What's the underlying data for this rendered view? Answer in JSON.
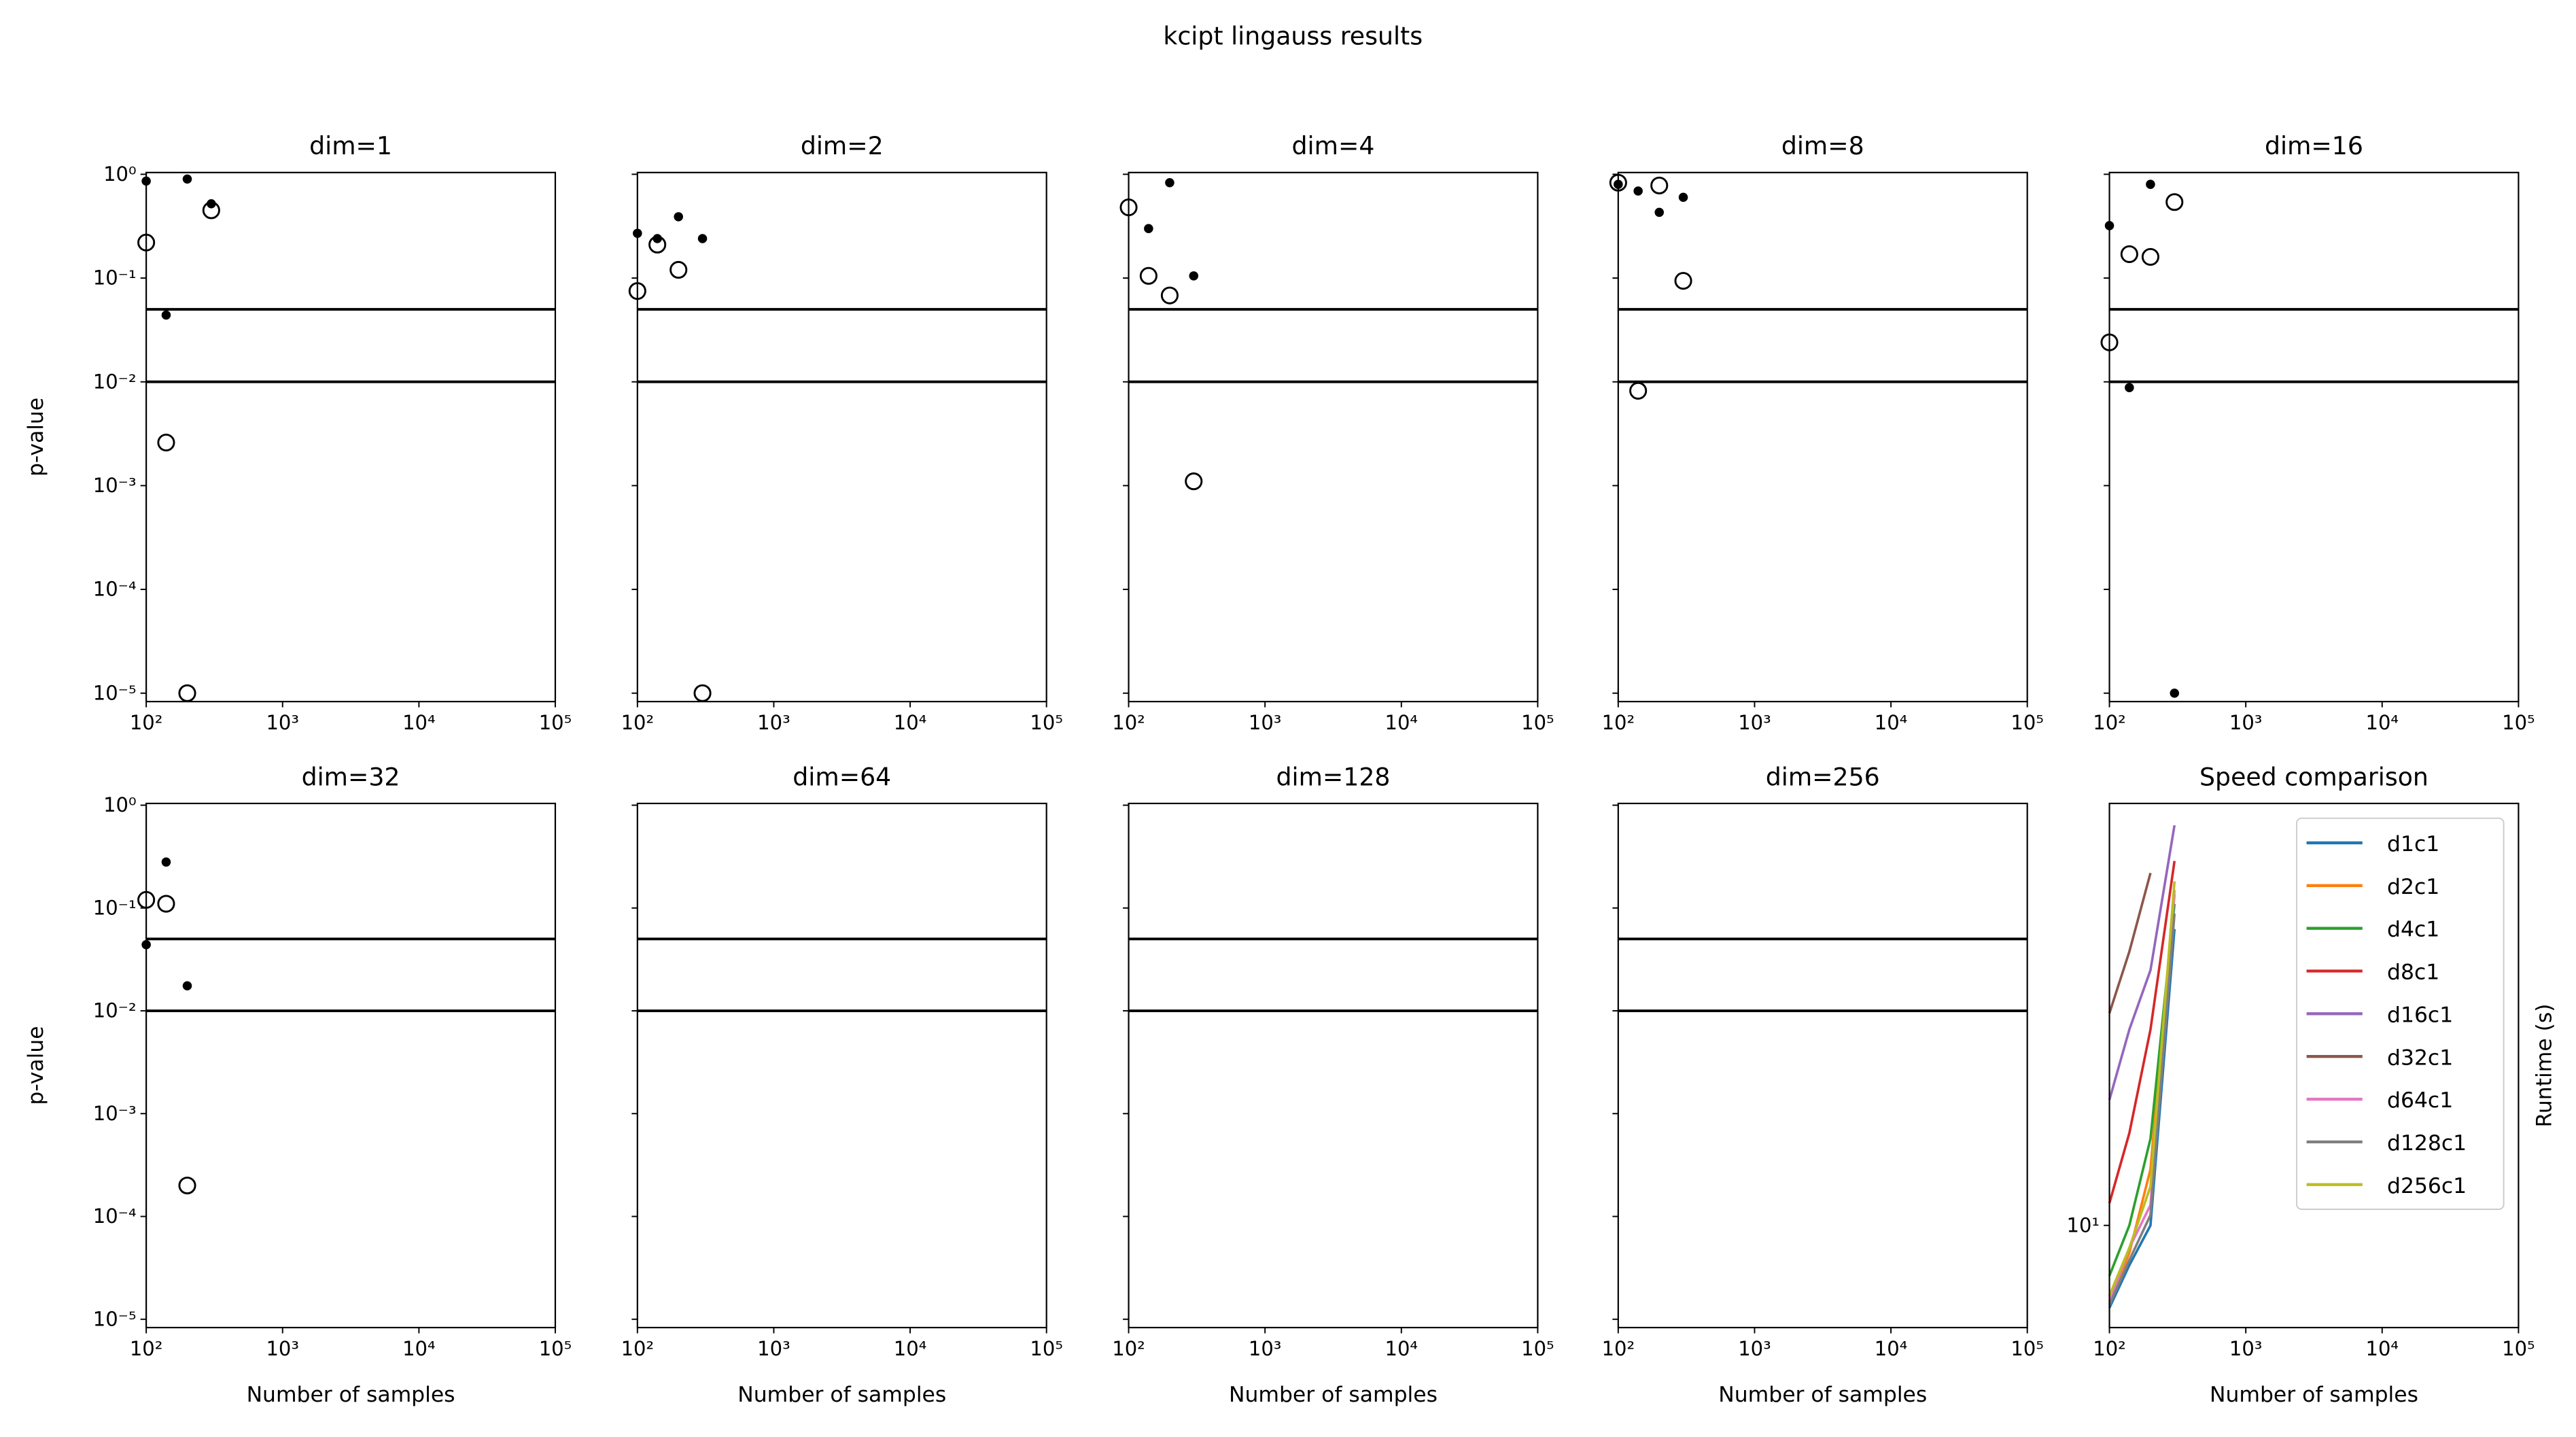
{
  "title": "kcipt lingauss results",
  "chart_data": [
    {
      "type": "scatter",
      "title": "dim=1",
      "ylabel": "p-value",
      "xscale": "log",
      "yscale": "log",
      "xlim": [
        100,
        100000
      ],
      "ylim": [
        8.3e-06,
        1.04
      ],
      "xticks": [
        {
          "value": 100,
          "label": "10²"
        },
        {
          "value": 1000,
          "label": "10³"
        },
        {
          "value": 10000,
          "label": "10⁴"
        },
        {
          "value": 100000,
          "label": "10⁵"
        }
      ],
      "yticks": [
        {
          "value": 1,
          "label": "10⁰"
        },
        {
          "value": 0.1,
          "label": "10⁻¹"
        },
        {
          "value": 0.01,
          "label": "10⁻²"
        },
        {
          "value": 0.001,
          "label": "10⁻³"
        },
        {
          "value": 0.0001,
          "label": "10⁻⁴"
        },
        {
          "value": 1e-05,
          "label": "10⁻⁵"
        }
      ],
      "hlines": [
        0.05,
        0.01
      ],
      "color": "#000000",
      "series": [
        {
          "marker": "dot",
          "x": [
            100,
            200,
            300,
            140
          ],
          "values": [
            0.86,
            0.9,
            0.52,
            0.044
          ]
        },
        {
          "marker": "circle",
          "x": [
            100,
            300,
            140,
            200
          ],
          "values": [
            0.22,
            0.45,
            0.0026,
            1e-05
          ]
        }
      ]
    },
    {
      "type": "scatter",
      "title": "dim=2",
      "xscale": "log",
      "yscale": "log",
      "xlim": [
        100,
        100000
      ],
      "ylim": [
        8.3e-06,
        1.04
      ],
      "xticks": [
        {
          "value": 100,
          "label": "10²"
        },
        {
          "value": 1000,
          "label": "10³"
        },
        {
          "value": 10000,
          "label": "10⁴"
        },
        {
          "value": 100000,
          "label": "10⁵"
        }
      ],
      "hlines": [
        0.05,
        0.01
      ],
      "color": "#000000",
      "series": [
        {
          "marker": "dot",
          "x": [
            100,
            140,
            200,
            300
          ],
          "values": [
            0.27,
            0.24,
            0.39,
            0.24
          ]
        },
        {
          "marker": "circle",
          "x": [
            100,
            140,
            200,
            300
          ],
          "values": [
            0.075,
            0.21,
            0.12,
            1e-05
          ]
        }
      ]
    },
    {
      "type": "scatter",
      "title": "dim=4",
      "xscale": "log",
      "yscale": "log",
      "xlim": [
        100,
        100000
      ],
      "ylim": [
        8.3e-06,
        1.04
      ],
      "xticks": [
        {
          "value": 100,
          "label": "10²"
        },
        {
          "value": 1000,
          "label": "10³"
        },
        {
          "value": 10000,
          "label": "10⁴"
        },
        {
          "value": 100000,
          "label": "10⁵"
        }
      ],
      "hlines": [
        0.05,
        0.01
      ],
      "color": "#000000",
      "series": [
        {
          "marker": "dot",
          "x": [
            200,
            140,
            300
          ],
          "values": [
            0.83,
            0.3,
            0.105
          ]
        },
        {
          "marker": "circle",
          "x": [
            100,
            140,
            200,
            300
          ],
          "values": [
            0.48,
            0.105,
            0.068,
            0.0011
          ]
        }
      ]
    },
    {
      "type": "scatter",
      "title": "dim=8",
      "xscale": "log",
      "yscale": "log",
      "xlim": [
        100,
        100000
      ],
      "ylim": [
        8.3e-06,
        1.04
      ],
      "xticks": [
        {
          "value": 100,
          "label": "10²"
        },
        {
          "value": 1000,
          "label": "10³"
        },
        {
          "value": 10000,
          "label": "10⁴"
        },
        {
          "value": 100000,
          "label": "10⁵"
        }
      ],
      "hlines": [
        0.05,
        0.01
      ],
      "color": "#000000",
      "series": [
        {
          "marker": "dot",
          "x": [
            100,
            140,
            200,
            300
          ],
          "values": [
            0.8,
            0.69,
            0.43,
            0.6
          ]
        },
        {
          "marker": "circle",
          "x": [
            100,
            200,
            300,
            140
          ],
          "values": [
            0.83,
            0.78,
            0.094,
            0.0082
          ]
        }
      ]
    },
    {
      "type": "scatter",
      "title": "dim=16",
      "xscale": "log",
      "yscale": "log",
      "xlim": [
        100,
        100000
      ],
      "ylim": [
        8.3e-06,
        1.04
      ],
      "xticks": [
        {
          "value": 100,
          "label": "10²"
        },
        {
          "value": 1000,
          "label": "10³"
        },
        {
          "value": 10000,
          "label": "10⁴"
        },
        {
          "value": 100000,
          "label": "10⁵"
        }
      ],
      "hlines": [
        0.05,
        0.01
      ],
      "color": "#000000",
      "series": [
        {
          "marker": "dot",
          "x": [
            100,
            200,
            140,
            300
          ],
          "values": [
            0.32,
            0.8,
            0.0088,
            1e-05
          ]
        },
        {
          "marker": "circle",
          "x": [
            100,
            140,
            200,
            300
          ],
          "values": [
            0.024,
            0.17,
            0.16,
            0.54
          ]
        }
      ]
    },
    {
      "type": "scatter",
      "title": "dim=32",
      "ylabel": "p-value",
      "xlabel": "Number of samples",
      "xscale": "log",
      "yscale": "log",
      "xlim": [
        100,
        100000
      ],
      "ylim": [
        8.3e-06,
        1.04
      ],
      "xticks": [
        {
          "value": 100,
          "label": "10²"
        },
        {
          "value": 1000,
          "label": "10³"
        },
        {
          "value": 10000,
          "label": "10⁴"
        },
        {
          "value": 100000,
          "label": "10⁵"
        }
      ],
      "yticks": [
        {
          "value": 1,
          "label": "10⁰"
        },
        {
          "value": 0.1,
          "label": "10⁻¹"
        },
        {
          "value": 0.01,
          "label": "10⁻²"
        },
        {
          "value": 0.001,
          "label": "10⁻³"
        },
        {
          "value": 0.0001,
          "label": "10⁻⁴"
        },
        {
          "value": 1e-05,
          "label": "10⁻⁵"
        }
      ],
      "hlines": [
        0.05,
        0.01
      ],
      "color": "#000000",
      "series": [
        {
          "marker": "dot",
          "x": [
            100,
            140,
            200
          ],
          "values": [
            0.044,
            0.28,
            0.0175
          ]
        },
        {
          "marker": "circle",
          "x": [
            100,
            140,
            200
          ],
          "values": [
            0.12,
            0.11,
            0.0002
          ]
        }
      ]
    },
    {
      "type": "scatter",
      "title": "dim=64",
      "xlabel": "Number of samples",
      "xscale": "log",
      "yscale": "log",
      "xlim": [
        100,
        100000
      ],
      "ylim": [
        8.3e-06,
        1.04
      ],
      "xticks": [
        {
          "value": 100,
          "label": "10²"
        },
        {
          "value": 1000,
          "label": "10³"
        },
        {
          "value": 10000,
          "label": "10⁴"
        },
        {
          "value": 100000,
          "label": "10⁵"
        }
      ],
      "hlines": [
        0.05,
        0.01
      ],
      "color": "#000000"
    },
    {
      "type": "scatter",
      "title": "dim=128",
      "xlabel": "Number of samples",
      "xscale": "log",
      "yscale": "log",
      "xlim": [
        100,
        100000
      ],
      "ylim": [
        8.3e-06,
        1.04
      ],
      "xticks": [
        {
          "value": 100,
          "label": "10²"
        },
        {
          "value": 1000,
          "label": "10³"
        },
        {
          "value": 10000,
          "label": "10⁴"
        },
        {
          "value": 100000,
          "label": "10⁵"
        }
      ],
      "hlines": [
        0.05,
        0.01
      ],
      "color": "#000000"
    },
    {
      "type": "scatter",
      "title": "dim=256",
      "xlabel": "Number of samples",
      "xscale": "log",
      "yscale": "log",
      "xlim": [
        100,
        100000
      ],
      "ylim": [
        8.3e-06,
        1.04
      ],
      "xticks": [
        {
          "value": 100,
          "label": "10²"
        },
        {
          "value": 1000,
          "label": "10³"
        },
        {
          "value": 10000,
          "label": "10⁴"
        },
        {
          "value": 100000,
          "label": "10⁵"
        }
      ],
      "hlines": [
        0.05,
        0.01
      ],
      "color": "#000000"
    },
    {
      "type": "line",
      "title": "Speed comparison",
      "xlabel": "Number of samples",
      "ylabel": "Runtime (s)",
      "xscale": "log",
      "yscale": "log",
      "xlim": [
        100,
        100000
      ],
      "ylim": [
        6.2,
        72
      ],
      "xticks": [
        {
          "value": 100,
          "label": "10²"
        },
        {
          "value": 1000,
          "label": "10³"
        },
        {
          "value": 10000,
          "label": "10⁴"
        },
        {
          "value": 100000,
          "label": "10⁵"
        }
      ],
      "yticks": [
        {
          "value": 10,
          "label": "10¹"
        }
      ],
      "legend": "upper right",
      "x": [
        100,
        140,
        200,
        300
      ],
      "series": [
        {
          "name": "d1c1",
          "color": "#1f77b4",
          "values": [
            6.8,
            8.3,
            10.0,
            40
          ]
        },
        {
          "name": "d2c1",
          "color": "#ff7f0e",
          "values": [
            6.9,
            8.8,
            13,
            47
          ]
        },
        {
          "name": "d4c1",
          "color": "#2ca02c",
          "values": [
            7.9,
            10.0,
            15,
            45
          ]
        },
        {
          "name": "d8c1",
          "color": "#d62728",
          "values": [
            11.1,
            15.4,
            25,
            55
          ]
        },
        {
          "name": "d16c1",
          "color": "#9467bd",
          "values": [
            18,
            25,
            33,
            65
          ]
        },
        {
          "name": "d32c1",
          "color": "#8c564b",
          "values": [
            27,
            36,
            52,
            null
          ]
        },
        {
          "name": "d64c1",
          "color": "#e377c2",
          "values": [
            7.0,
            9.0,
            11,
            48
          ]
        },
        {
          "name": "d128c1",
          "color": "#7f7f7f",
          "values": [
            6.9,
            8.5,
            10.5,
            43
          ]
        },
        {
          "name": "d256c1",
          "color": "#bcbd22",
          "values": [
            7.2,
            9.0,
            12,
            50
          ]
        }
      ]
    }
  ]
}
